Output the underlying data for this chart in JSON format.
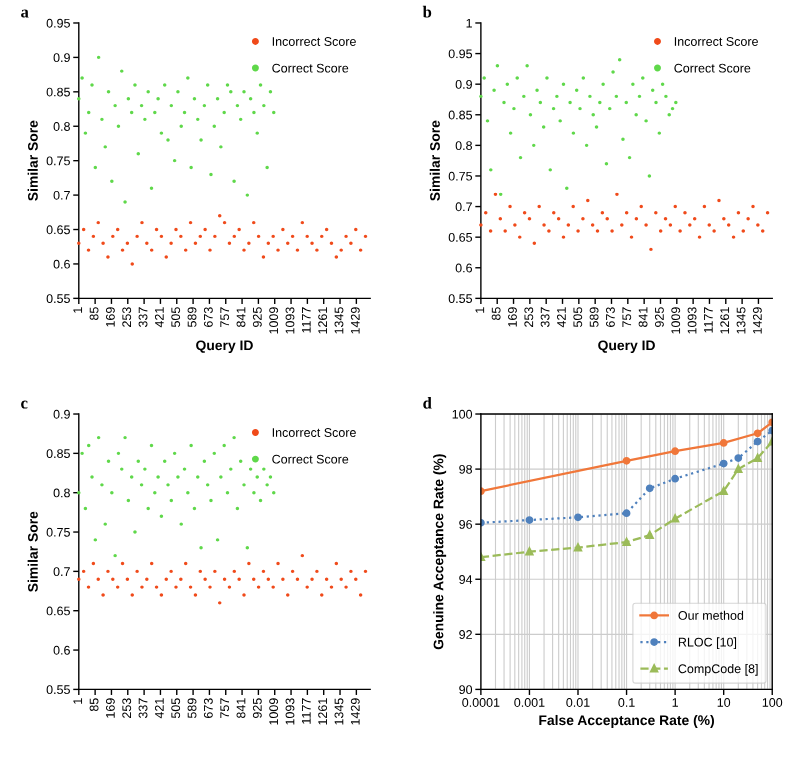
{
  "chart_data": [
    {
      "type": "scatter",
      "title": "a",
      "xlabel": "Query ID",
      "ylabel": "Similar Sore",
      "xlim": [
        1,
        1500
      ],
      "xticks": [
        1,
        85,
        169,
        253,
        337,
        421,
        505,
        589,
        673,
        757,
        841,
        925,
        1009,
        1093,
        1177,
        1261,
        1345,
        1429
      ],
      "ylim": [
        0.55,
        0.95
      ],
      "yticks": [
        0.55,
        0.6,
        0.65,
        0.7,
        0.75,
        0.8,
        0.85,
        0.9,
        0.95
      ],
      "legend": "top right",
      "marker": "circle",
      "series": [
        {
          "name": "Incorrect Score",
          "color": "#f04a1a",
          "x": [
            1,
            26,
            51,
            76,
            101,
            126,
            151,
            176,
            201,
            226,
            251,
            276,
            301,
            326,
            351,
            376,
            401,
            426,
            451,
            476,
            501,
            526,
            551,
            576,
            601,
            626,
            651,
            676,
            701,
            726,
            751,
            776,
            801,
            826,
            851,
            876,
            901,
            926,
            951,
            976,
            1001,
            1026,
            1051,
            1076,
            1101,
            1126,
            1151,
            1176,
            1201,
            1226,
            1251,
            1276,
            1301,
            1326,
            1351,
            1376,
            1401,
            1426,
            1451,
            1476
          ],
          "values": [
            0.63,
            0.65,
            0.62,
            0.64,
            0.66,
            0.63,
            0.61,
            0.64,
            0.65,
            0.62,
            0.63,
            0.6,
            0.64,
            0.66,
            0.63,
            0.62,
            0.65,
            0.64,
            0.61,
            0.63,
            0.65,
            0.64,
            0.62,
            0.66,
            0.63,
            0.64,
            0.65,
            0.62,
            0.64,
            0.67,
            0.66,
            0.63,
            0.64,
            0.65,
            0.62,
            0.63,
            0.66,
            0.64,
            0.61,
            0.63,
            0.64,
            0.62,
            0.65,
            0.63,
            0.64,
            0.62,
            0.66,
            0.64,
            0.63,
            0.62,
            0.64,
            0.65,
            0.63,
            0.61,
            0.62,
            0.64,
            0.63,
            0.65,
            0.62,
            0.64
          ]
        },
        {
          "name": "Correct Score",
          "color": "#5fd84a",
          "x": [
            1,
            18,
            35,
            52,
            69,
            86,
            103,
            120,
            137,
            154,
            171,
            188,
            205,
            222,
            239,
            256,
            273,
            290,
            307,
            324,
            341,
            358,
            375,
            392,
            409,
            426,
            443,
            460,
            477,
            494,
            511,
            528,
            545,
            562,
            579,
            596,
            613,
            630,
            647,
            664,
            681,
            698,
            715,
            732,
            749,
            766,
            783,
            800,
            817,
            834,
            851,
            868,
            885,
            902,
            919,
            936,
            953,
            970,
            987,
            1004
          ],
          "values": [
            0.84,
            0.87,
            0.79,
            0.82,
            0.86,
            0.74,
            0.9,
            0.81,
            0.77,
            0.85,
            0.72,
            0.83,
            0.8,
            0.88,
            0.69,
            0.84,
            0.82,
            0.86,
            0.76,
            0.83,
            0.81,
            0.85,
            0.71,
            0.82,
            0.84,
            0.79,
            0.86,
            0.78,
            0.83,
            0.75,
            0.85,
            0.8,
            0.82,
            0.87,
            0.74,
            0.84,
            0.81,
            0.78,
            0.83,
            0.86,
            0.73,
            0.8,
            0.84,
            0.77,
            0.82,
            0.86,
            0.85,
            0.72,
            0.83,
            0.81,
            0.85,
            0.7,
            0.84,
            0.82,
            0.79,
            0.86,
            0.83,
            0.74,
            0.85,
            0.82
          ]
        }
      ]
    },
    {
      "type": "scatter",
      "title": "b",
      "xlabel": "Query ID",
      "ylabel": "Similar Sore",
      "xlim": [
        1,
        1500
      ],
      "xticks": [
        1,
        85,
        169,
        253,
        337,
        421,
        505,
        589,
        673,
        757,
        841,
        925,
        1009,
        1093,
        1177,
        1261,
        1345,
        1429
      ],
      "ylim": [
        0.55,
        1
      ],
      "yticks": [
        0.55,
        0.6,
        0.65,
        0.7,
        0.75,
        0.8,
        0.85,
        0.9,
        0.95,
        1
      ],
      "legend": "top right",
      "marker": "circle",
      "series": [
        {
          "name": "Incorrect Score",
          "color": "#f04a1a",
          "x": [
            1,
            26,
            51,
            76,
            101,
            126,
            151,
            176,
            201,
            226,
            251,
            276,
            301,
            326,
            351,
            376,
            401,
            426,
            451,
            476,
            501,
            526,
            551,
            576,
            601,
            626,
            651,
            676,
            701,
            726,
            751,
            776,
            801,
            826,
            851,
            876,
            901,
            926,
            951,
            976,
            1001,
            1026,
            1051,
            1076,
            1101,
            1126,
            1151,
            1176,
            1201,
            1226,
            1251,
            1276,
            1301,
            1326,
            1351,
            1376,
            1401,
            1426,
            1451,
            1476
          ],
          "values": [
            0.67,
            0.69,
            0.66,
            0.72,
            0.68,
            0.66,
            0.7,
            0.67,
            0.65,
            0.69,
            0.68,
            0.64,
            0.7,
            0.67,
            0.66,
            0.69,
            0.68,
            0.65,
            0.67,
            0.7,
            0.66,
            0.68,
            0.71,
            0.67,
            0.66,
            0.69,
            0.68,
            0.66,
            0.72,
            0.67,
            0.69,
            0.65,
            0.68,
            0.7,
            0.67,
            0.63,
            0.69,
            0.66,
            0.68,
            0.67,
            0.7,
            0.66,
            0.69,
            0.67,
            0.68,
            0.65,
            0.7,
            0.67,
            0.66,
            0.71,
            0.68,
            0.67,
            0.65,
            0.69,
            0.66,
            0.68,
            0.7,
            0.67,
            0.66,
            0.69
          ]
        },
        {
          "name": "Correct Score",
          "color": "#5fd84a",
          "x": [
            1,
            18,
            35,
            52,
            69,
            86,
            103,
            120,
            137,
            154,
            171,
            188,
            205,
            222,
            239,
            256,
            273,
            290,
            307,
            324,
            341,
            358,
            375,
            392,
            409,
            426,
            443,
            460,
            477,
            494,
            511,
            528,
            545,
            562,
            579,
            596,
            613,
            630,
            647,
            664,
            681,
            698,
            715,
            732,
            749,
            766,
            783,
            800,
            817,
            834,
            851,
            868,
            885,
            902,
            919,
            936,
            953,
            970,
            987,
            1004
          ],
          "values": [
            0.88,
            0.91,
            0.84,
            0.76,
            0.89,
            0.93,
            0.72,
            0.87,
            0.9,
            0.82,
            0.86,
            0.91,
            0.78,
            0.88,
            0.93,
            0.85,
            0.8,
            0.89,
            0.87,
            0.83,
            0.91,
            0.76,
            0.86,
            0.88,
            0.84,
            0.9,
            0.73,
            0.87,
            0.82,
            0.89,
            0.86,
            0.91,
            0.8,
            0.88,
            0.85,
            0.83,
            0.87,
            0.9,
            0.77,
            0.86,
            0.92,
            0.88,
            0.94,
            0.81,
            0.87,
            0.78,
            0.9,
            0.85,
            0.88,
            0.91,
            0.84,
            0.75,
            0.89,
            0.87,
            0.82,
            0.9,
            0.88,
            0.85,
            0.86,
            0.87
          ]
        }
      ]
    },
    {
      "type": "scatter",
      "title": "c",
      "ylabel": "Similar Sore",
      "xlim": [
        1,
        1500
      ],
      "xticks": [
        1,
        85,
        169,
        253,
        337,
        421,
        505,
        589,
        673,
        757,
        841,
        925,
        1009,
        1093,
        1177,
        1261,
        1345,
        1429
      ],
      "ylim": [
        0.55,
        0.9
      ],
      "yticks": [
        0.55,
        0.6,
        0.65,
        0.7,
        0.75,
        0.8,
        0.85,
        0.9
      ],
      "legend": "top right",
      "marker": "circle",
      "series": [
        {
          "name": "Incorrect Score",
          "color": "#f04a1a",
          "x": [
            1,
            26,
            51,
            76,
            101,
            126,
            151,
            176,
            201,
            226,
            251,
            276,
            301,
            326,
            351,
            376,
            401,
            426,
            451,
            476,
            501,
            526,
            551,
            576,
            601,
            626,
            651,
            676,
            701,
            726,
            751,
            776,
            801,
            826,
            851,
            876,
            901,
            926,
            951,
            976,
            1001,
            1026,
            1051,
            1076,
            1101,
            1126,
            1151,
            1176,
            1201,
            1226,
            1251,
            1276,
            1301,
            1326,
            1351,
            1376,
            1401,
            1426,
            1451,
            1476
          ],
          "values": [
            0.69,
            0.7,
            0.68,
            0.71,
            0.69,
            0.67,
            0.7,
            0.69,
            0.68,
            0.71,
            0.69,
            0.67,
            0.7,
            0.68,
            0.69,
            0.71,
            0.68,
            0.67,
            0.69,
            0.7,
            0.68,
            0.69,
            0.71,
            0.68,
            0.67,
            0.7,
            0.69,
            0.68,
            0.7,
            0.66,
            0.69,
            0.68,
            0.7,
            0.69,
            0.67,
            0.71,
            0.69,
            0.68,
            0.7,
            0.69,
            0.68,
            0.71,
            0.69,
            0.67,
            0.7,
            0.69,
            0.72,
            0.68,
            0.69,
            0.7,
            0.67,
            0.69,
            0.68,
            0.71,
            0.69,
            0.68,
            0.7,
            0.69,
            0.67,
            0.7
          ]
        },
        {
          "name": "Correct Score",
          "color": "#5fd84a",
          "x": [
            1,
            18,
            35,
            52,
            69,
            86,
            103,
            120,
            137,
            154,
            171,
            188,
            205,
            222,
            239,
            256,
            273,
            290,
            307,
            324,
            341,
            358,
            375,
            392,
            409,
            426,
            443,
            460,
            477,
            494,
            511,
            528,
            545,
            562,
            579,
            596,
            613,
            630,
            647,
            664,
            681,
            698,
            715,
            732,
            749,
            766,
            783,
            800,
            817,
            834,
            851,
            868,
            885,
            902,
            919,
            936,
            953,
            970,
            987,
            1004
          ],
          "values": [
            0.8,
            0.85,
            0.78,
            0.86,
            0.82,
            0.74,
            0.87,
            0.81,
            0.76,
            0.84,
            0.8,
            0.72,
            0.85,
            0.83,
            0.87,
            0.79,
            0.82,
            0.75,
            0.84,
            0.81,
            0.83,
            0.78,
            0.86,
            0.8,
            0.82,
            0.77,
            0.84,
            0.81,
            0.79,
            0.85,
            0.82,
            0.76,
            0.83,
            0.8,
            0.86,
            0.78,
            0.82,
            0.73,
            0.84,
            0.81,
            0.79,
            0.85,
            0.74,
            0.82,
            0.86,
            0.8,
            0.83,
            0.87,
            0.78,
            0.84,
            0.81,
            0.73,
            0.83,
            0.8,
            0.82,
            0.79,
            0.83,
            0.81,
            0.82,
            0.8
          ]
        }
      ]
    },
    {
      "type": "line",
      "title": "d",
      "xlabel": "False Acceptance Rate (%)",
      "ylabel": "Genuine Acceptance Rate (%)",
      "log": "x",
      "xlim": [
        0.0001,
        100
      ],
      "xticks": [
        0.0001,
        0.001,
        0.01,
        0.1,
        1,
        10,
        100
      ],
      "ylim": [
        90,
        100
      ],
      "yticks": [
        90,
        92,
        94,
        96,
        98,
        100
      ],
      "grid": true,
      "legend": "bottom right",
      "series": [
        {
          "name": "Our method",
          "color": "#f0773a",
          "marker": "circle",
          "line_style": "solid",
          "x": [
            0.0001,
            0.1,
            1,
            10,
            50,
            100
          ],
          "values": [
            97.2,
            98.3,
            98.65,
            98.95,
            99.3,
            99.7
          ]
        },
        {
          "name": "RLOC [10]",
          "color": "#4f81bd",
          "marker": "circle",
          "line_style": "dotted",
          "x": [
            0.0001,
            0.001,
            0.01,
            0.1,
            0.3,
            1,
            10,
            20,
            50,
            100
          ],
          "values": [
            96.05,
            96.15,
            96.25,
            96.4,
            97.3,
            97.65,
            98.2,
            98.4,
            99.0,
            99.4
          ]
        },
        {
          "name": "CompCode [8]",
          "color": "#9bbb59",
          "marker": "triangle",
          "line_style": "dashed",
          "x": [
            0.0001,
            0.001,
            0.01,
            0.1,
            0.3,
            1,
            10,
            20,
            50,
            100
          ],
          "values": [
            94.8,
            95.0,
            95.15,
            95.35,
            95.6,
            96.2,
            97.2,
            98.0,
            98.4,
            99.0
          ]
        }
      ]
    }
  ]
}
